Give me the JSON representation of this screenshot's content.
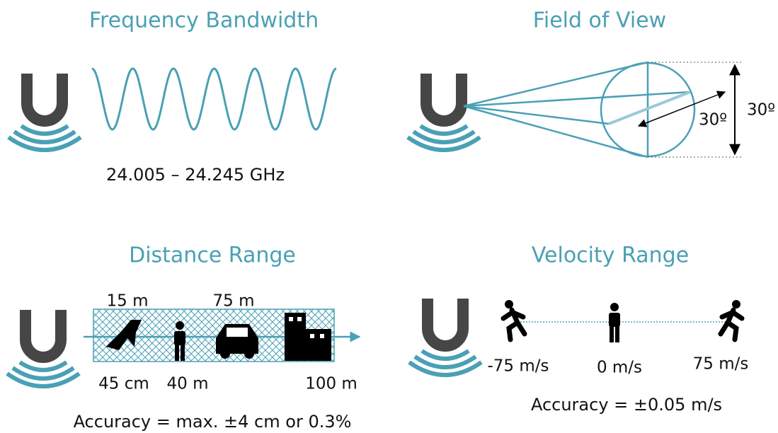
{
  "panels": [
    {
      "title": "Frequency Bandwidth",
      "caption": "24.005 – 24.245 GHz"
    },
    {
      "title": "Field of View",
      "labels": [
        "30º",
        "30º"
      ]
    },
    {
      "title": "Distance Range",
      "labels": [
        "15 m",
        "75 m",
        "45 cm",
        "40 m",
        "100 m"
      ],
      "caption": "Accuracy = max. ±4 cm or 0.3%"
    },
    {
      "title": "Velocity Range",
      "labels": [
        "-75 m/s",
        "0 m/s",
        "75 m/s"
      ],
      "caption": "Accuracy = ±0.05 m/s"
    }
  ]
}
